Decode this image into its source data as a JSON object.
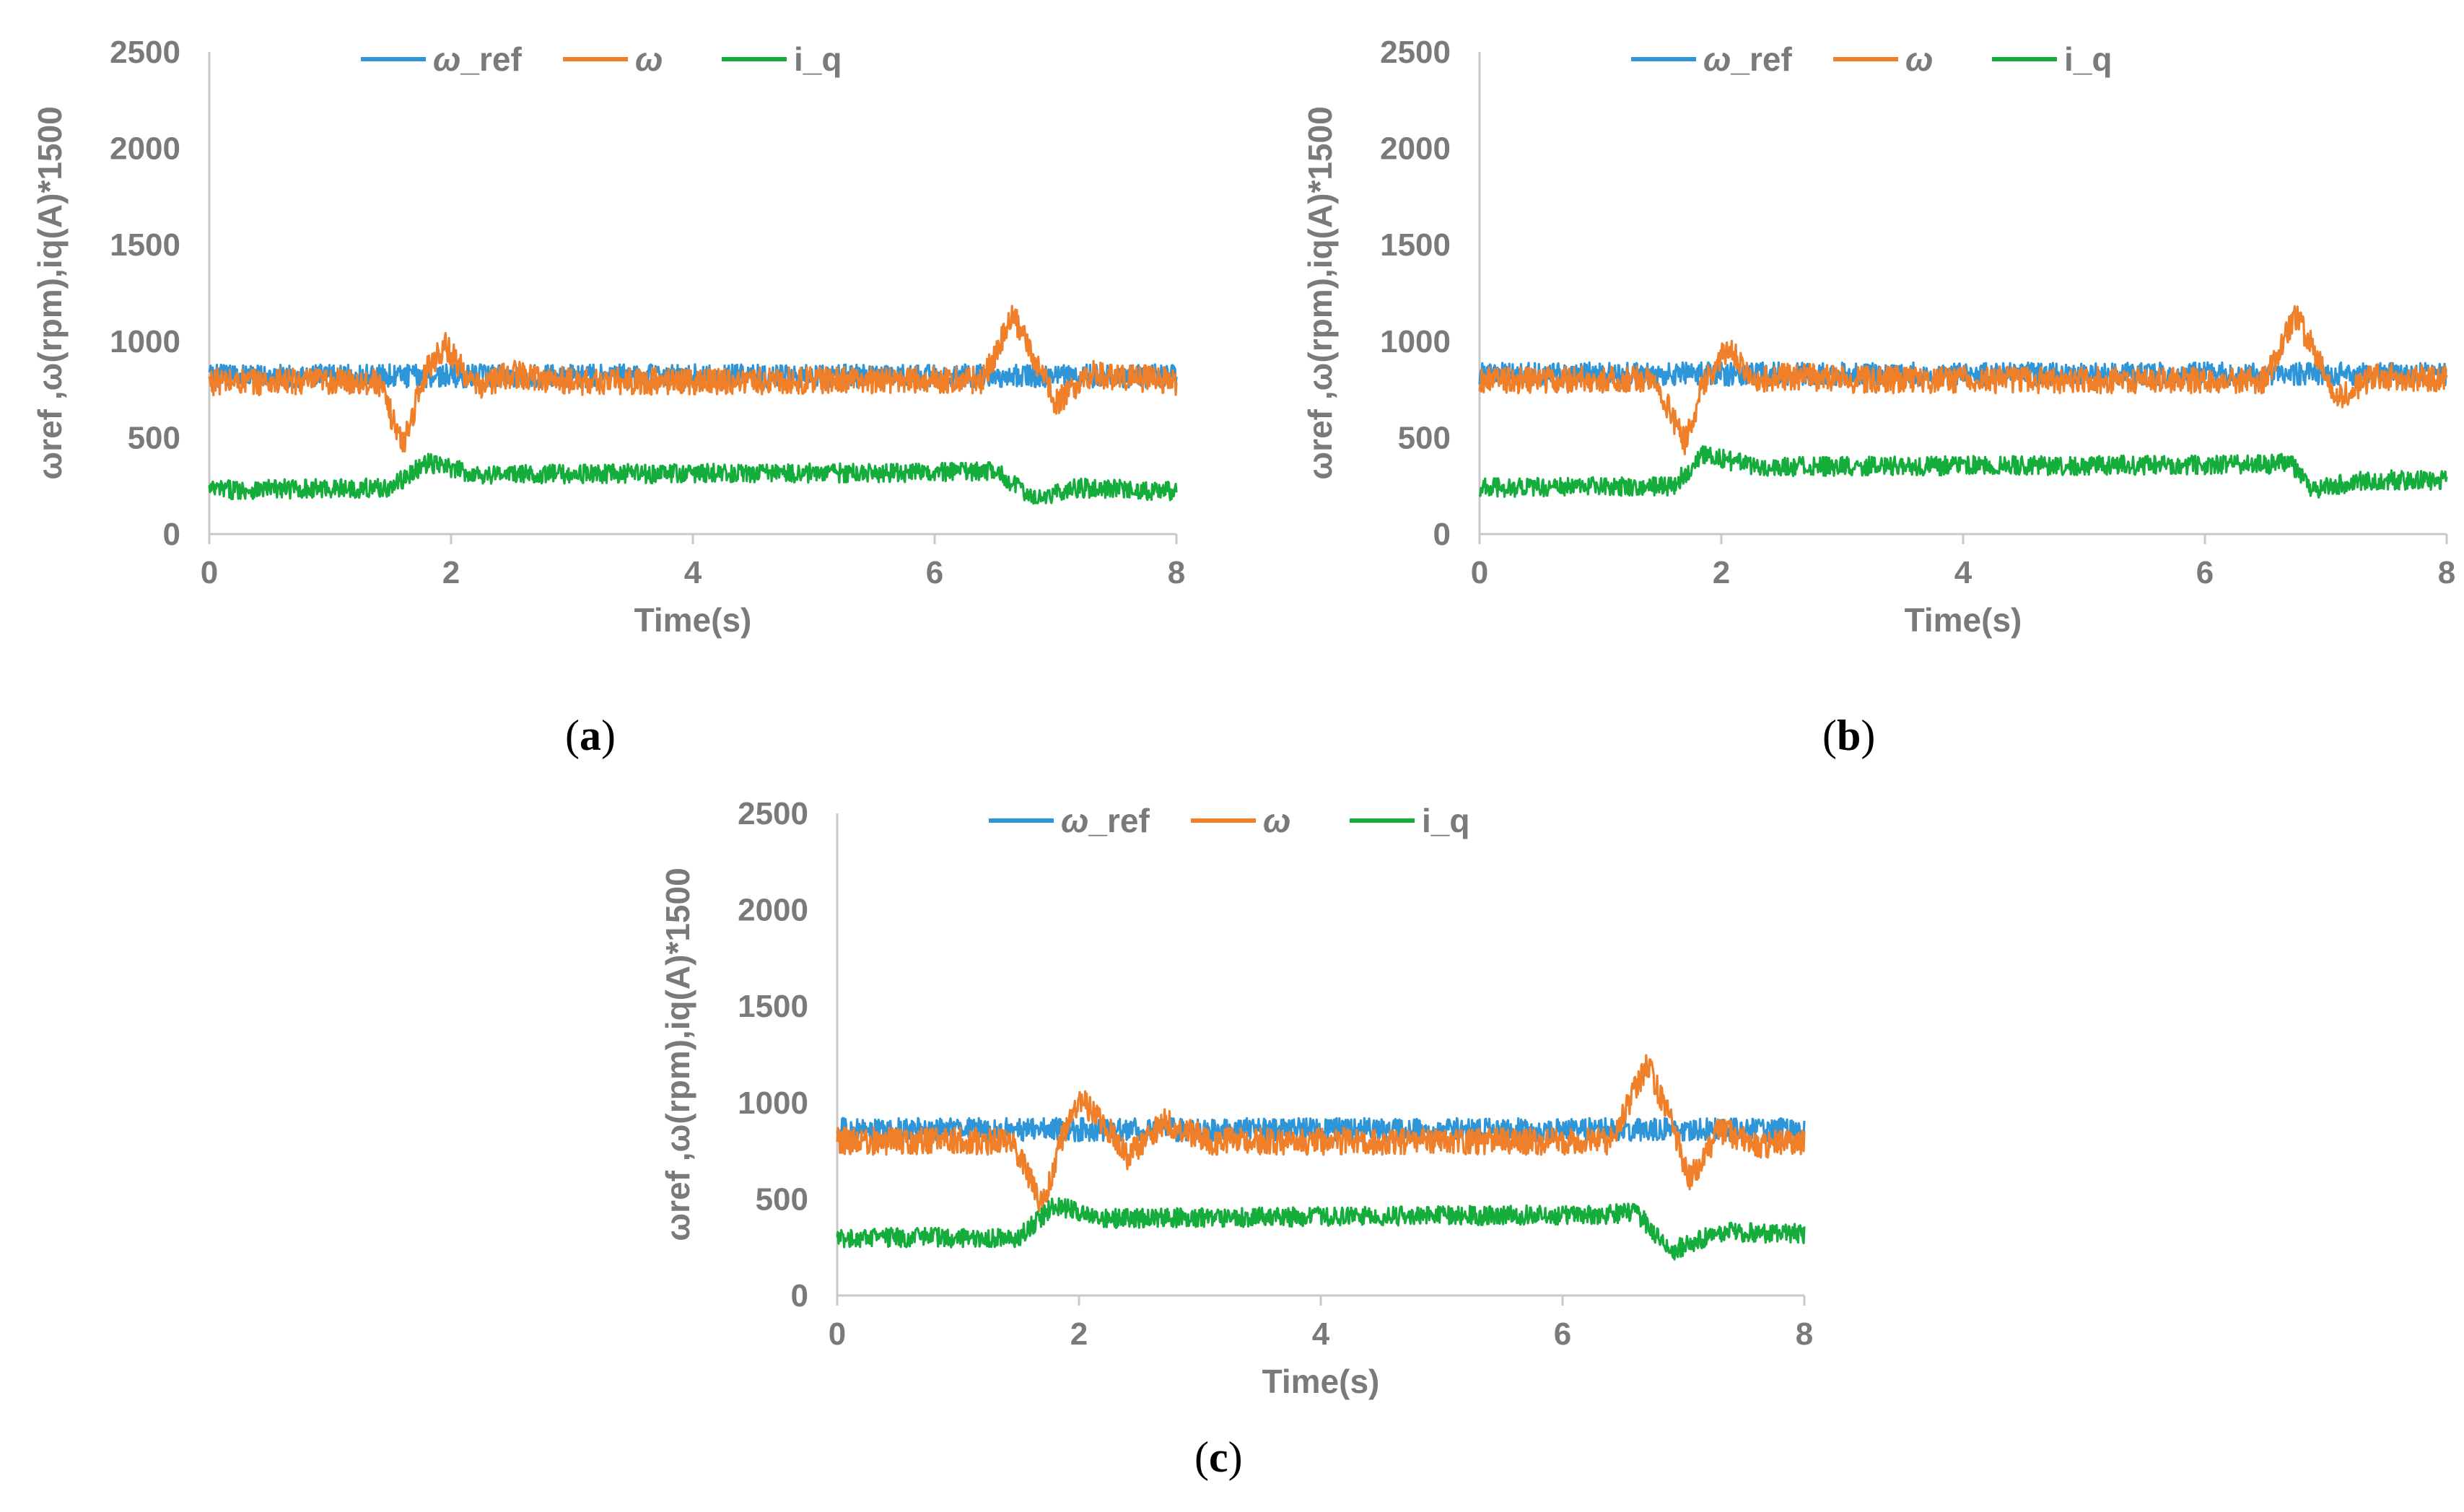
{
  "colors": {
    "w_ref": "#2e95d8",
    "w": "#f07f2a",
    "i_q": "#14ad3c",
    "axis": "#c8c8c8",
    "text": "#7a7a7a"
  },
  "chart_data": [
    {
      "type": "line",
      "panel": "a",
      "caption": "(a)",
      "xlabel": "Time(s)",
      "ylabel": "ωref ,ω(rpm),iq(A)*1500",
      "xlim": [
        0,
        8
      ],
      "ylim": [
        0,
        2500
      ],
      "xticks": [
        0,
        2,
        4,
        6,
        8
      ],
      "yticks": [
        0,
        500,
        1000,
        1500,
        2000,
        2500
      ],
      "legend_position": "top-center",
      "series": [
        {
          "name": "ω_ref",
          "key": "w_ref",
          "x": [
            0,
            8
          ],
          "values": [
            820,
            820
          ]
        },
        {
          "name": "ω",
          "key": "w",
          "x": [
            0,
            1.4,
            1.6,
            1.8,
            1.95,
            2.2,
            2.5,
            3.0,
            6.4,
            6.65,
            6.85,
            7.0,
            7.3,
            8
          ],
          "values": [
            790,
            790,
            460,
            860,
            980,
            760,
            830,
            790,
            800,
            1130,
            880,
            680,
            830,
            790
          ]
        },
        {
          "name": "i_q",
          "key": "i_q",
          "x": [
            0,
            1.5,
            1.8,
            2.2,
            6.3,
            6.5,
            6.8,
            7.2,
            8
          ],
          "values": [
            230,
            240,
            370,
            310,
            320,
            330,
            190,
            240,
            220
          ]
        }
      ]
    },
    {
      "type": "line",
      "panel": "b",
      "caption": "(b)",
      "xlabel": "Time(s)",
      "ylabel": "ωref ,ω(rpm),iq(A)*1500",
      "xlim": [
        0,
        8
      ],
      "ylim": [
        0,
        2500
      ],
      "xticks": [
        0,
        2,
        4,
        6,
        8
      ],
      "yticks": [
        0,
        500,
        1000,
        1500,
        2000,
        2500
      ],
      "legend_position": "top-center",
      "series": [
        {
          "name": "ω_ref",
          "key": "w_ref",
          "x": [
            0,
            8
          ],
          "values": [
            830,
            830
          ]
        },
        {
          "name": "ω",
          "key": "w",
          "x": [
            0,
            1.45,
            1.7,
            1.85,
            2.05,
            2.3,
            2.6,
            3.0,
            6.5,
            6.75,
            6.95,
            7.1,
            7.4,
            8
          ],
          "values": [
            800,
            800,
            470,
            780,
            960,
            800,
            820,
            800,
            800,
            1130,
            900,
            700,
            820,
            800
          ]
        },
        {
          "name": "i_q",
          "key": "i_q",
          "x": [
            0,
            1.6,
            1.85,
            2.3,
            6.5,
            6.7,
            6.9,
            7.3,
            8
          ],
          "values": [
            240,
            250,
            410,
            350,
            360,
            370,
            230,
            280,
            280
          ]
        }
      ]
    },
    {
      "type": "line",
      "panel": "c",
      "caption": "(c)",
      "xlabel": "Time(s)",
      "ylabel": "ωref ,ω(rpm),iq(A)*1500",
      "xlim": [
        0,
        8
      ],
      "ylim": [
        0,
        2500
      ],
      "xticks": [
        0,
        2,
        4,
        6,
        8
      ],
      "yticks": [
        0,
        500,
        1000,
        1500,
        2000,
        2500
      ],
      "legend_position": "top-center",
      "series": [
        {
          "name": "ω_ref",
          "key": "w_ref",
          "x": [
            0,
            8
          ],
          "values": [
            860,
            860
          ]
        },
        {
          "name": "ω",
          "key": "w",
          "x": [
            0,
            1.45,
            1.7,
            1.85,
            2.0,
            2.2,
            2.4,
            2.7,
            3.1,
            6.4,
            6.7,
            6.9,
            7.05,
            7.3,
            7.6,
            8
          ],
          "values": [
            800,
            800,
            460,
            800,
            1020,
            900,
            720,
            900,
            800,
            800,
            1200,
            900,
            600,
            860,
            780,
            800
          ]
        },
        {
          "name": "i_q",
          "key": "i_q",
          "x": [
            0,
            1.5,
            1.8,
            2.2,
            6.4,
            6.6,
            6.9,
            7.3,
            8
          ],
          "values": [
            300,
            300,
            470,
            400,
            420,
            440,
            230,
            330,
            320
          ]
        }
      ]
    }
  ]
}
